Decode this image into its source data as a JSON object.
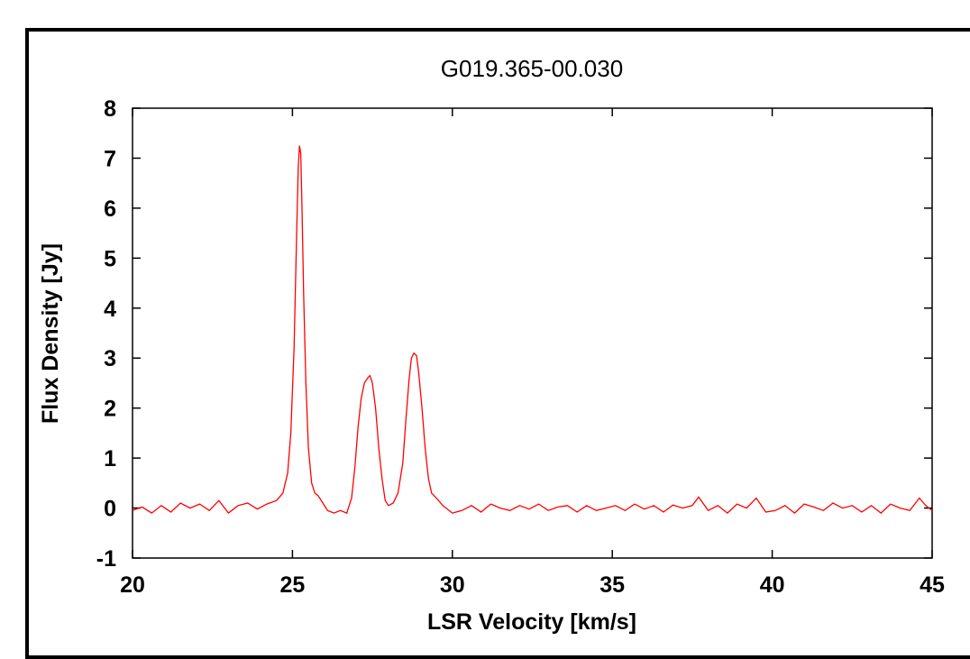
{
  "chart_data": {
    "type": "line",
    "title": "G019.365-00.030",
    "xlabel": "LSR Velocity [km/s]",
    "ylabel": "Flux Density [Jy]",
    "xlim": [
      20,
      45
    ],
    "ylim": [
      -1,
      8
    ],
    "xticks": [
      20,
      25,
      30,
      35,
      40,
      45
    ],
    "yticks": [
      -1,
      0,
      1,
      2,
      3,
      4,
      5,
      6,
      7,
      8
    ],
    "grid": false,
    "legend": "none",
    "line_color": "#ff0000",
    "series": [
      {
        "x": [
          20.0,
          20.3,
          20.6,
          20.9,
          21.2,
          21.5,
          21.8,
          22.1,
          22.4,
          22.7,
          23.0,
          23.3,
          23.6,
          23.9,
          24.2,
          24.5,
          24.7,
          24.85,
          24.95,
          25.05,
          25.12,
          25.18,
          25.22,
          25.26,
          25.3,
          25.35,
          25.42,
          25.5,
          25.6,
          25.7,
          25.8,
          25.95,
          26.1,
          26.3,
          26.5,
          26.7,
          26.85,
          26.95,
          27.05,
          27.15,
          27.25,
          27.35,
          27.42,
          27.5,
          27.6,
          27.7,
          27.8,
          27.9,
          28.0,
          28.15,
          28.3,
          28.45,
          28.55,
          28.65,
          28.72,
          28.8,
          28.88,
          28.95,
          29.05,
          29.15,
          29.25,
          29.35,
          29.5,
          29.7,
          30.0,
          30.3,
          30.6,
          30.9,
          31.2,
          31.5,
          31.8,
          32.1,
          32.4,
          32.7,
          33.0,
          33.3,
          33.6,
          33.9,
          34.2,
          34.5,
          34.8,
          35.1,
          35.4,
          35.7,
          36.0,
          36.3,
          36.6,
          36.9,
          37.2,
          37.5,
          37.7,
          38.0,
          38.3,
          38.6,
          38.9,
          39.2,
          39.5,
          39.8,
          40.1,
          40.4,
          40.7,
          41.0,
          41.3,
          41.6,
          41.9,
          42.2,
          42.5,
          42.8,
          43.1,
          43.4,
          43.7,
          44.0,
          44.3,
          44.6,
          44.8,
          45.0
        ],
        "y": [
          -0.05,
          0.02,
          -0.1,
          0.05,
          -0.08,
          0.1,
          0.0,
          0.08,
          -0.05,
          0.15,
          -0.1,
          0.05,
          0.1,
          -0.02,
          0.08,
          0.15,
          0.3,
          0.7,
          1.5,
          3.2,
          5.2,
          6.8,
          7.25,
          7.1,
          6.0,
          4.3,
          2.5,
          1.2,
          0.5,
          0.3,
          0.25,
          0.1,
          -0.05,
          -0.1,
          -0.05,
          -0.1,
          0.2,
          0.8,
          1.6,
          2.2,
          2.5,
          2.6,
          2.65,
          2.5,
          2.0,
          1.2,
          0.6,
          0.15,
          0.05,
          0.1,
          0.3,
          0.9,
          1.8,
          2.6,
          3.0,
          3.1,
          3.05,
          2.7,
          2.0,
          1.2,
          0.6,
          0.3,
          0.2,
          0.05,
          -0.1,
          -0.05,
          0.05,
          -0.08,
          0.08,
          0.0,
          -0.05,
          0.05,
          -0.02,
          0.08,
          -0.05,
          0.02,
          0.05,
          -0.08,
          0.05,
          -0.05,
          0.0,
          0.05,
          -0.05,
          0.08,
          -0.02,
          0.05,
          -0.08,
          0.06,
          0.0,
          0.05,
          0.22,
          -0.05,
          0.05,
          -0.1,
          0.08,
          0.0,
          0.2,
          -0.08,
          -0.05,
          0.05,
          -0.1,
          0.08,
          0.02,
          -0.05,
          0.1,
          0.0,
          0.05,
          -0.08,
          0.05,
          -0.1,
          0.08,
          0.0,
          -0.05,
          0.2,
          0.05,
          -0.05
        ]
      }
    ]
  }
}
